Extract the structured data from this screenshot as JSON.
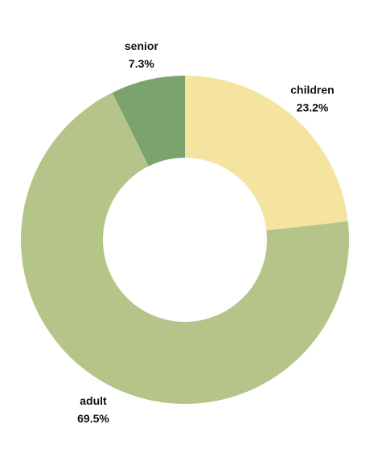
{
  "chart_data": {
    "type": "pie",
    "donut": true,
    "title": "",
    "slices": [
      {
        "label": "children",
        "value": 23.2,
        "value_label": "23.2%",
        "color": "#f5e4a0"
      },
      {
        "label": "adult",
        "value": 69.5,
        "value_label": "69.5%",
        "color": "#b5c488"
      },
      {
        "label": "senior",
        "value": 7.3,
        "value_label": "7.3%",
        "color": "#7ba36d"
      }
    ],
    "start_angle": "top (12 o'clock)",
    "direction": "clockwise",
    "legend": "none"
  }
}
